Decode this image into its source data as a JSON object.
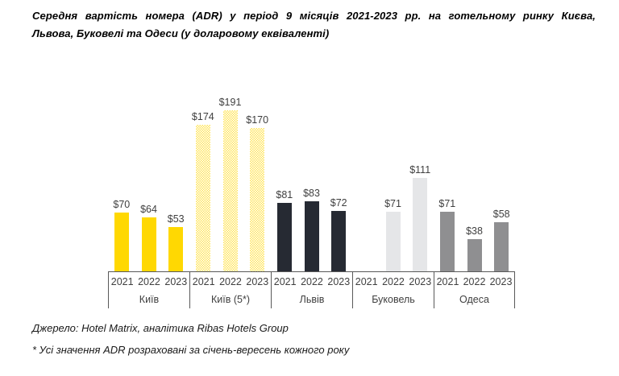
{
  "title": {
    "line1": "Середня вартість номера (ADR) у період 9 місяців 2021-2023 рр. на готельному ринку Києва,",
    "line2": "Львова, Буковелі та Одеси (у доларовому еквіваленті)"
  },
  "source": "Джерело: Hotel Matrix, аналітика Ribas Hotels Group",
  "footnote": "* Усі значення ADR розраховані за січень-вересень кожного року",
  "chart_data": {
    "type": "bar",
    "title": "Середня вартість номера (ADR) у період 9 місяців 2021-2023 рр. на готельному ринку Києва, Львова, Буковелі та Одеси (у доларовому еквіваленті)",
    "value_prefix": "$",
    "categories": [
      "2021",
      "2022",
      "2023"
    ],
    "series": [
      {
        "name": "Київ",
        "pattern": "solid",
        "color": "#FFD802",
        "values": [
          70,
          64,
          53
        ]
      },
      {
        "name": "Київ (5*)",
        "pattern": "checker",
        "color": "#FFE45C",
        "values": [
          174,
          191,
          170
        ]
      },
      {
        "name": "Львів",
        "pattern": "solid",
        "color": "#262A33",
        "values": [
          81,
          83,
          72
        ]
      },
      {
        "name": "Буковель",
        "pattern": "solid",
        "color": "#E5E6E8",
        "values": [
          null,
          71,
          111
        ]
      },
      {
        "name": "Одеса",
        "pattern": "solid",
        "color": "#8F8F91",
        "values": [
          71,
          38,
          58
        ]
      }
    ],
    "ylim": [
      0,
      200
    ],
    "grid": false,
    "legend": "none",
    "data_labels": true,
    "axis_text_color": "#3F3F3F",
    "axis_line_color": "#595959"
  }
}
